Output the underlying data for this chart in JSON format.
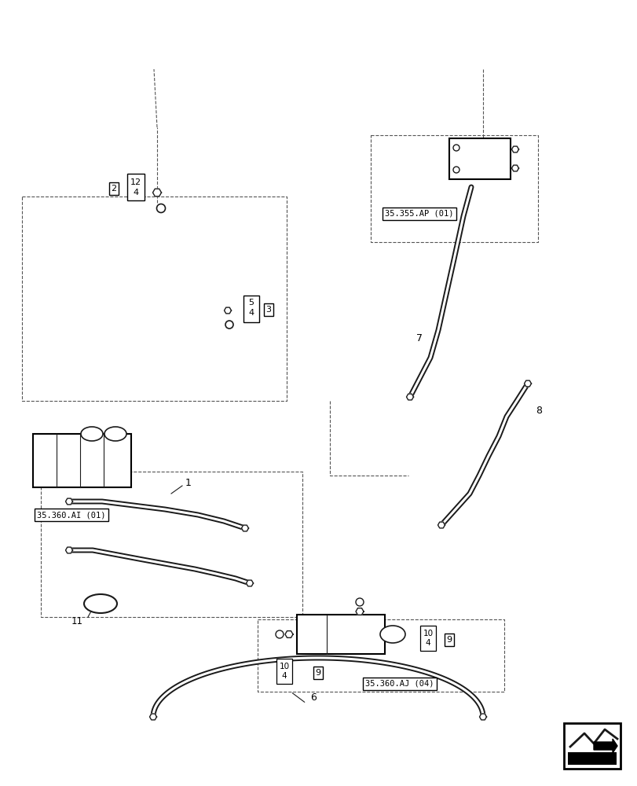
{
  "background_color": "#ffffff",
  "line_color": "#1a1a1a",
  "dashed_color": "#555555",
  "fig_width": 8.12,
  "fig_height": 10.0,
  "labels": {
    "ref_box_ai": "35.360.AI (01)",
    "ref_box_ap": "35.355.AP (01)",
    "ref_box_aj04": "35.360.AJ (04)"
  }
}
